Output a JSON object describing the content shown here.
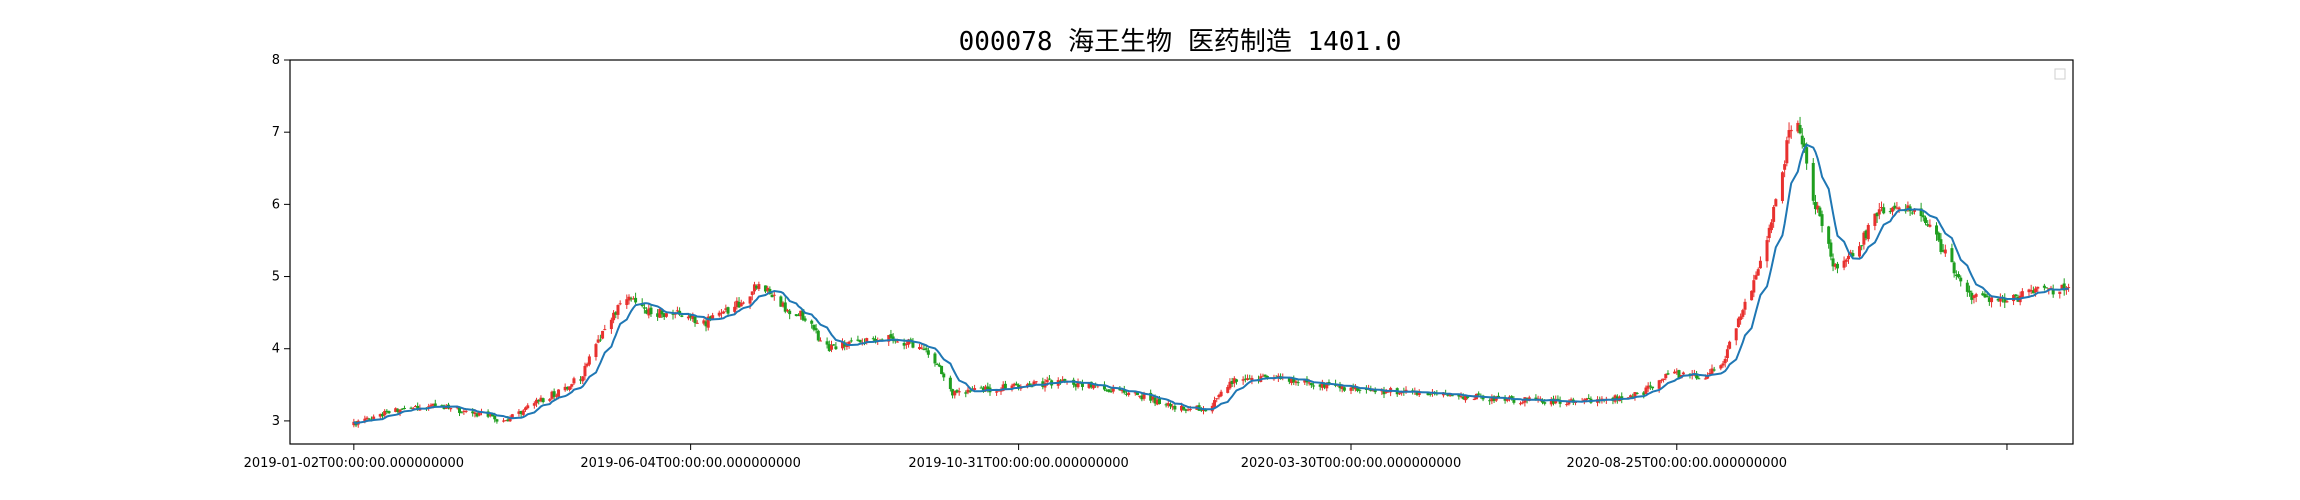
{
  "chart_data": {
    "type": "candlestick",
    "title": "000078 海王生物 医药制造 1401.0",
    "xlabel": "",
    "ylabel": "",
    "ylim": [
      2.68,
      8.0
    ],
    "yticks": [
      3,
      4,
      5,
      6,
      7,
      8
    ],
    "xtick_labels": [
      "2019-01-02T00:00:00.000000000",
      "2019-06-04T00:00:00.000000000",
      "2019-10-31T00:00:00.000000000",
      "2020-03-30T00:00:00.000000000",
      "2020-08-25T00:00:00.000000000",
      ""
    ],
    "xtick_dates": [
      "2019-01-02",
      "2019-06-04",
      "2019-10-31",
      "2020-03-30",
      "2020-08-25",
      "2021-01-22"
    ],
    "x_range": [
      "2018-12-04",
      "2021-02-21"
    ],
    "up_color": "#e8312f",
    "down_color": "#1f9e1f",
    "ma_color": "#1f77b4",
    "grid": false,
    "legend": "top-right",
    "anchors": [
      [
        "2019-01-02",
        2.95
      ],
      [
        "2019-01-20",
        3.15
      ],
      [
        "2019-02-05",
        3.2
      ],
      [
        "2019-02-20",
        3.15
      ],
      [
        "2019-03-05",
        3.05
      ],
      [
        "2019-03-12",
        3.0
      ],
      [
        "2019-03-25",
        3.25
      ],
      [
        "2019-04-05",
        3.4
      ],
      [
        "2019-04-15",
        3.6
      ],
      [
        "2019-04-25",
        4.2
      ],
      [
        "2019-05-05",
        4.75
      ],
      [
        "2019-05-15",
        4.5
      ],
      [
        "2019-05-30",
        4.5
      ],
      [
        "2019-06-10",
        4.35
      ],
      [
        "2019-06-25",
        4.6
      ],
      [
        "2019-07-05",
        4.9
      ],
      [
        "2019-07-15",
        4.6
      ],
      [
        "2019-07-25",
        4.45
      ],
      [
        "2019-08-05",
        4.0
      ],
      [
        "2019-08-20",
        4.1
      ],
      [
        "2019-09-01",
        4.15
      ],
      [
        "2019-09-15",
        4.05
      ],
      [
        "2019-09-22",
        3.85
      ],
      [
        "2019-10-01",
        3.4
      ],
      [
        "2019-10-20",
        3.45
      ],
      [
        "2019-11-05",
        3.5
      ],
      [
        "2019-11-20",
        3.55
      ],
      [
        "2019-12-10",
        3.45
      ],
      [
        "2019-12-25",
        3.35
      ],
      [
        "2020-01-10",
        3.2
      ],
      [
        "2020-01-25",
        3.15
      ],
      [
        "2020-02-05",
        3.55
      ],
      [
        "2020-02-20",
        3.6
      ],
      [
        "2020-03-10",
        3.55
      ],
      [
        "2020-03-30",
        3.45
      ],
      [
        "2020-04-20",
        3.4
      ],
      [
        "2020-05-15",
        3.35
      ],
      [
        "2020-06-10",
        3.3
      ],
      [
        "2020-07-05",
        3.25
      ],
      [
        "2020-07-25",
        3.3
      ],
      [
        "2020-08-10",
        3.4
      ],
      [
        "2020-08-20",
        3.65
      ],
      [
        "2020-09-05",
        3.6
      ],
      [
        "2020-09-15",
        3.8
      ],
      [
        "2020-09-25",
        4.6
      ],
      [
        "2020-10-05",
        5.5
      ],
      [
        "2020-10-12",
        6.5
      ],
      [
        "2020-10-18",
        7.4
      ],
      [
        "2020-10-25",
        6.2
      ],
      [
        "2020-11-05",
        5.1
      ],
      [
        "2020-11-15",
        5.4
      ],
      [
        "2020-11-25",
        5.9
      ],
      [
        "2020-12-05",
        6.0
      ],
      [
        "2020-12-15",
        5.85
      ],
      [
        "2020-12-25",
        5.3
      ],
      [
        "2021-01-05",
        4.75
      ],
      [
        "2021-01-20",
        4.65
      ],
      [
        "2021-02-05",
        4.8
      ],
      [
        "2021-02-21",
        4.85
      ]
    ]
  }
}
